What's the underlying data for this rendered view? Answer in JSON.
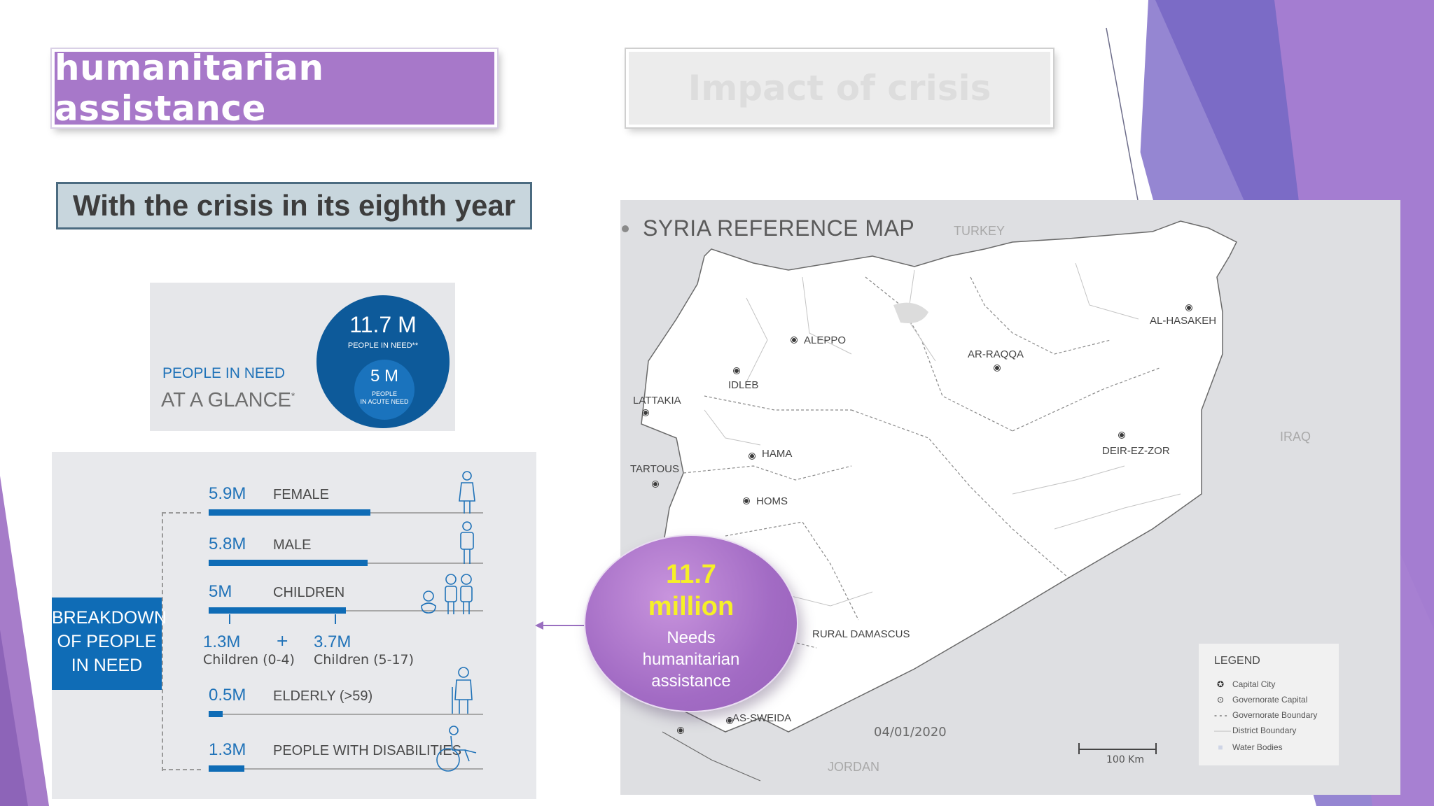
{
  "tabs": {
    "active_label": "humanitarian assistance",
    "inactive_label": "Impact of crisis"
  },
  "subtitle": "With the crisis in its eighth year",
  "glance": {
    "line1": "PEOPLE IN NEED",
    "line2": "AT A GLANCE",
    "line2_mark": "*",
    "circle_value": "11.7 M",
    "circle_label": "PEOPLE IN NEED**",
    "inner_value": "5 M",
    "inner_label_1": "PEOPLE",
    "inner_label_2": "IN ACUTE NEED"
  },
  "breakdown": {
    "tag": [
      "BREAKDOWN",
      "OF PEOPLE",
      "IN NEED"
    ],
    "rows": [
      {
        "value": "5.9M",
        "label": "FEMALE",
        "fraction": 0.59
      },
      {
        "value": "5.8M",
        "label": "MALE",
        "fraction": 0.58
      },
      {
        "value": "5M",
        "label": "CHILDREN",
        "fraction": 0.5
      },
      {
        "value": "0.5M",
        "label": "ELDERLY (>59)",
        "fraction": 0.05
      },
      {
        "value": "1.3M",
        "label": "PEOPLE WITH DISABILITIES",
        "fraction": 0.13
      }
    ],
    "children_split": {
      "a_value": "1.3M",
      "a_label": "Children (0-4)",
      "plus": "+",
      "b_value": "3.7M",
      "b_label": "Children (5-17)"
    }
  },
  "map": {
    "title": "SYRIA REFERENCE MAP",
    "countries": [
      "TURKEY",
      "IRAQ",
      "JORDAN"
    ],
    "cities": [
      "ALEPPO",
      "IDLEB",
      "LATTAKIA",
      "TARTOUS",
      "HAMA",
      "HOMS",
      "AR-RAQQA",
      "AL-HASAKEH",
      "DEIR-EZ-ZOR",
      "RURAL DAMASCUS",
      "AS-SWEIDA"
    ],
    "date": "04/01/2020",
    "legend": {
      "title": "LEGEND",
      "items": [
        "Capital City",
        "Governorate Capital",
        "Governorate Boundary",
        "District Boundary",
        "Water Bodies"
      ]
    },
    "scale_label": "100 Km"
  },
  "callout": {
    "value_line1": "11.7",
    "value_line2": "million",
    "text_line1": "Needs",
    "text_line2": "humanitarian",
    "text_line3": "assistance"
  },
  "colors": {
    "purple": "#a778c9",
    "blue": "#0f6cb6",
    "yellow": "#f6f027"
  }
}
